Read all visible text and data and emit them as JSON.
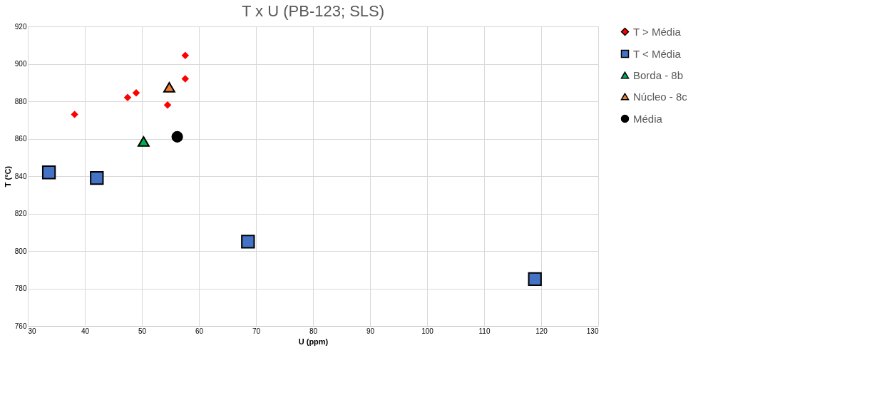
{
  "chart_data": {
    "type": "scatter",
    "title": "T x U (PB-123; SLS)",
    "xlabel": "U (ppm)",
    "ylabel": "T (°C)",
    "xlim": [
      30,
      130
    ],
    "xticks": [
      30,
      40,
      50,
      60,
      70,
      80,
      90,
      100,
      110,
      120,
      130
    ],
    "ylim": [
      760,
      920
    ],
    "yticks": [
      760,
      780,
      800,
      820,
      840,
      860,
      880,
      900,
      920
    ],
    "grid": true,
    "legend": "right",
    "series": [
      {
        "name": "T > Média",
        "color": "#ff0000",
        "marker": "diamond",
        "x": [
          38.2,
          47.5,
          49.0,
          54.5,
          57.6,
          57.6
        ],
        "values": [
          873,
          882,
          884.5,
          878,
          892,
          904.5
        ]
      },
      {
        "name": "T < Média",
        "color": "#4472c4",
        "marker": "square",
        "x": [
          33.7,
          42.1,
          68.6,
          118.9
        ],
        "values": [
          842,
          839,
          805,
          785
        ]
      },
      {
        "name": "Borda - 8b",
        "color": "#00b050",
        "marker": "triangle",
        "x": [
          50.3
        ],
        "values": [
          858.5
        ]
      },
      {
        "name": "Núcleo - 8c",
        "color": "#ed7d31",
        "marker": "triangle",
        "x": [
          54.8
        ],
        "values": [
          887.5
        ]
      },
      {
        "name": "Média",
        "color": "#000000",
        "marker": "circle",
        "x": [
          56.2
        ],
        "values": [
          861
        ]
      }
    ]
  }
}
